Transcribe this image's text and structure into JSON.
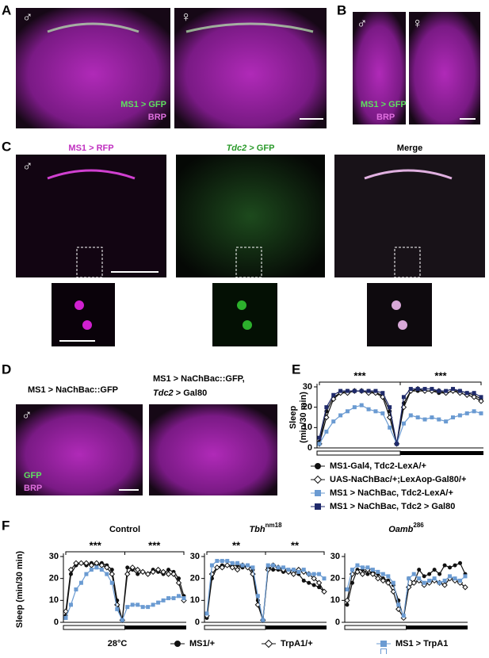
{
  "panels": {
    "A": {
      "label": "A",
      "male": "♂",
      "female": "♀",
      "legend": [
        "MS1 > GFP",
        "BRP"
      ]
    },
    "B": {
      "label": "B",
      "male": "♂",
      "female": "♀",
      "legend": [
        "MS1 > GFP",
        "BRP"
      ]
    },
    "C": {
      "label": "C",
      "male": "♂",
      "titles": [
        {
          "text": "MS1 > RFP"
        },
        {
          "italic": "Tdc2",
          "text": " > GFP"
        },
        {
          "text": "Merge"
        }
      ]
    },
    "D": {
      "label": "D",
      "male": "♂",
      "title1": "MS1 > NaChBac::GFP",
      "title2": "MS1 > NaChBac::GFP,",
      "title2b": {
        "italic": "Tdc2",
        "text": " > Gal80"
      },
      "legend": [
        "GFP",
        "BRP"
      ]
    },
    "E": {
      "label": "E"
    },
    "F": {
      "label": "F",
      "temp": "28°C"
    }
  },
  "chart_data": [
    {
      "type": "line",
      "ylabel": [
        "Sleep",
        "(min/30 min)"
      ],
      "ylim": [
        0,
        30
      ],
      "yticks": [
        0,
        10,
        20,
        30
      ],
      "annotations": [
        "***",
        "***"
      ],
      "series": [
        {
          "name": "MS1-Gal4, Tdc2-LexA/+",
          "color": "#111111",
          "marker": "circle",
          "filled": true,
          "values": [
            3,
            18,
            25,
            27,
            28,
            28,
            28,
            28,
            27,
            26,
            18,
            2,
            22,
            28,
            28,
            28,
            28,
            27,
            27,
            28,
            28,
            27,
            26,
            24
          ]
        },
        {
          "name": "UAS-NaChBac/+;LexAop-Gal80/+",
          "color": "#111111",
          "marker": "diamond",
          "filled": false,
          "values": [
            2,
            15,
            24,
            27,
            27,
            28,
            28,
            27,
            27,
            25,
            15,
            2,
            20,
            28,
            29,
            28,
            28,
            28,
            27,
            28,
            27,
            26,
            25,
            23
          ]
        },
        {
          "name": "MS1 > NaChBac, Tdc2-LexA/+",
          "color": "#6b9bd2",
          "marker": "square",
          "filled": true,
          "values": [
            2,
            8,
            13,
            16,
            18,
            20,
            21,
            19,
            18,
            17,
            10,
            2,
            12,
            16,
            15,
            14,
            15,
            14,
            13,
            15,
            16,
            17,
            18,
            17
          ]
        },
        {
          "name": "MS1 > NaChBac, Tdc2 > Gal80",
          "color": "#1f2a6b",
          "marker": "square",
          "filled": true,
          "values": [
            5,
            20,
            26,
            28,
            28,
            28,
            28,
            28,
            28,
            27,
            20,
            2,
            25,
            29,
            29,
            29,
            29,
            28,
            28,
            29,
            28,
            27,
            27,
            25
          ]
        }
      ]
    },
    {
      "type": "line",
      "title": "Control",
      "ylabel": "Sleep (min/30 min)",
      "ylim": [
        0,
        30
      ],
      "yticks": [
        0,
        10,
        20,
        30
      ],
      "annotations": [
        "***",
        "***"
      ],
      "series": [
        {
          "name": "MS1/+",
          "color": "#111111",
          "marker": "circle",
          "filled": true,
          "values": [
            3,
            22,
            26,
            27,
            26,
            27,
            26,
            27,
            26,
            24,
            10,
            1,
            25,
            24,
            22,
            23,
            22,
            24,
            23,
            22,
            24,
            23,
            20,
            12
          ]
        },
        {
          "name": "TrpA1/+",
          "color": "#111111",
          "marker": "diamond",
          "filled": false,
          "values": [
            5,
            24,
            27,
            27,
            27,
            26,
            27,
            26,
            25,
            22,
            8,
            1,
            22,
            25,
            24,
            23,
            22,
            23,
            24,
            23,
            22,
            22,
            18,
            10
          ]
        },
        {
          "name": "MS1 > TrpA1",
          "color": "#6b9bd2",
          "marker": "square",
          "filled": true,
          "values": [
            2,
            8,
            15,
            18,
            22,
            24,
            25,
            24,
            22,
            18,
            6,
            1,
            7,
            8,
            8,
            7,
            7,
            8,
            9,
            10,
            11,
            11,
            12,
            11
          ]
        }
      ]
    },
    {
      "type": "line",
      "title": {
        "text": "Tbh",
        "sup": "nm18"
      },
      "ylim": [
        0,
        30
      ],
      "yticks": [
        0,
        10,
        20,
        30
      ],
      "annotations": [
        "**",
        "**"
      ],
      "series": [
        {
          "color": "#111111",
          "marker": "circle",
          "filled": true,
          "values": [
            2,
            20,
            25,
            26,
            26,
            26,
            26,
            25,
            26,
            24,
            10,
            1,
            25,
            24,
            24,
            23,
            23,
            24,
            22,
            19,
            18,
            17,
            16,
            14
          ]
        },
        {
          "color": "#111111",
          "marker": "diamond",
          "filled": false,
          "values": [
            3,
            22,
            25,
            25,
            26,
            25,
            24,
            26,
            25,
            22,
            8,
            1,
            24,
            26,
            25,
            24,
            23,
            22,
            24,
            23,
            22,
            20,
            18,
            14
          ]
        },
        {
          "color": "#6b9bd2",
          "marker": "square",
          "filled": true,
          "values": [
            4,
            26,
            28,
            28,
            28,
            27,
            27,
            26,
            26,
            25,
            12,
            1,
            26,
            26,
            25,
            25,
            24,
            24,
            23,
            24,
            22,
            22,
            22,
            20
          ]
        }
      ]
    },
    {
      "type": "line",
      "title": {
        "text": "Oamb",
        "sup": "286"
      },
      "ylim": [
        0,
        30
      ],
      "yticks": [
        0,
        10,
        20,
        30
      ],
      "series": [
        {
          "color": "#111111",
          "marker": "circle",
          "filled": true,
          "values": [
            8,
            18,
            24,
            24,
            22,
            23,
            22,
            20,
            19,
            17,
            10,
            2,
            20,
            18,
            24,
            21,
            22,
            24,
            22,
            26,
            25,
            26,
            27,
            22
          ]
        },
        {
          "color": "#111111",
          "marker": "diamond",
          "filled": false,
          "values": [
            10,
            22,
            23,
            22,
            24,
            22,
            20,
            19,
            18,
            14,
            6,
            2,
            16,
            18,
            19,
            17,
            18,
            19,
            18,
            17,
            20,
            19,
            18,
            16
          ]
        },
        {
          "color": "#6b9bd2",
          "marker": "square",
          "filled": true,
          "values": [
            15,
            24,
            26,
            25,
            25,
            24,
            23,
            22,
            21,
            18,
            8,
            3,
            20,
            22,
            20,
            18,
            19,
            20,
            18,
            19,
            21,
            20,
            19,
            21
          ]
        }
      ]
    }
  ]
}
